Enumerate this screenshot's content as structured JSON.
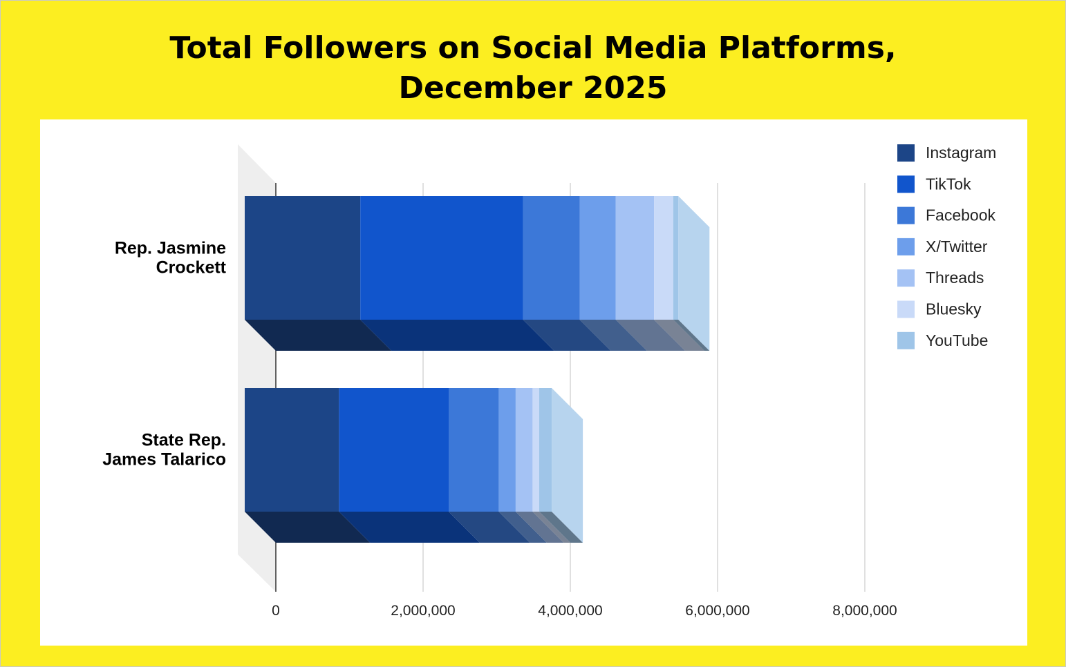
{
  "title_lines": [
    "Total Followers on Social Media Platforms,",
    "December 2025"
  ],
  "colors": {
    "background": "#fcee21",
    "panel": "#ffffff",
    "floor": "#eeeeee",
    "grid": "#cccccc"
  },
  "chart_data": {
    "type": "bar",
    "orientation": "horizontal",
    "stacked": true,
    "three_d": true,
    "title": "Total Followers on Social Media Platforms, December 2025",
    "categories": [
      "Rep. Jasmine Crockett",
      "State Rep. James Talarico"
    ],
    "category_lines": [
      [
        "Rep. Jasmine",
        "Crockett"
      ],
      [
        "State Rep.",
        "James Talarico"
      ]
    ],
    "series": [
      {
        "name": "Instagram",
        "color": "#1c4587",
        "values": [
          1570000,
          1280000
        ]
      },
      {
        "name": "TikTok",
        "color": "#1155cc",
        "values": [
          2210000,
          1490000
        ]
      },
      {
        "name": "Facebook",
        "color": "#3c78d8",
        "values": [
          770000,
          680000
        ]
      },
      {
        "name": "X/Twitter",
        "color": "#6d9eeb",
        "values": [
          490000,
          230000
        ]
      },
      {
        "name": "Threads",
        "color": "#a4c2f4",
        "values": [
          520000,
          230000
        ]
      },
      {
        "name": "Bluesky",
        "color": "#c9daf8",
        "values": [
          260000,
          90000
        ]
      },
      {
        "name": "YouTube",
        "color": "#9fc5e8",
        "values": [
          70000,
          170000
        ]
      }
    ],
    "xlim": [
      0,
      8000000
    ],
    "xticks": [
      0,
      2000000,
      4000000,
      6000000,
      8000000
    ],
    "xtick_labels": [
      "0",
      "2,000,000",
      "4,000,000",
      "6,000,000",
      "8,000,000"
    ],
    "grid": true,
    "legend": "right"
  }
}
